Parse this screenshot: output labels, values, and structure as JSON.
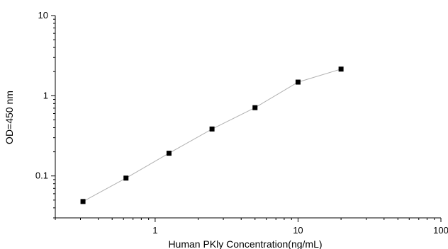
{
  "chart_data": {
    "type": "scatter",
    "xlabel": "Human PKly  Concentration(ng/mL)",
    "ylabel": "OD=450 nm",
    "xscale": "log",
    "yscale": "log",
    "xlim": [
      0.2,
      100
    ],
    "ylim": [
      0.03,
      10
    ],
    "grid": false,
    "x_tick_labels": [
      "1",
      "10",
      "100"
    ],
    "x_tick_values": [
      1,
      10,
      100
    ],
    "y_tick_labels": [
      "0.1",
      "1",
      "10"
    ],
    "y_tick_values": [
      0.1,
      1,
      10
    ],
    "series": [
      {
        "x": [
          0.3125,
          0.625,
          1.25,
          2.5,
          5,
          10,
          20
        ],
        "y": [
          0.048,
          0.094,
          0.192,
          0.385,
          0.71,
          1.48,
          2.15
        ],
        "marker": "square",
        "line_color": "#b0b0b0",
        "marker_color": "#000000"
      }
    ]
  }
}
